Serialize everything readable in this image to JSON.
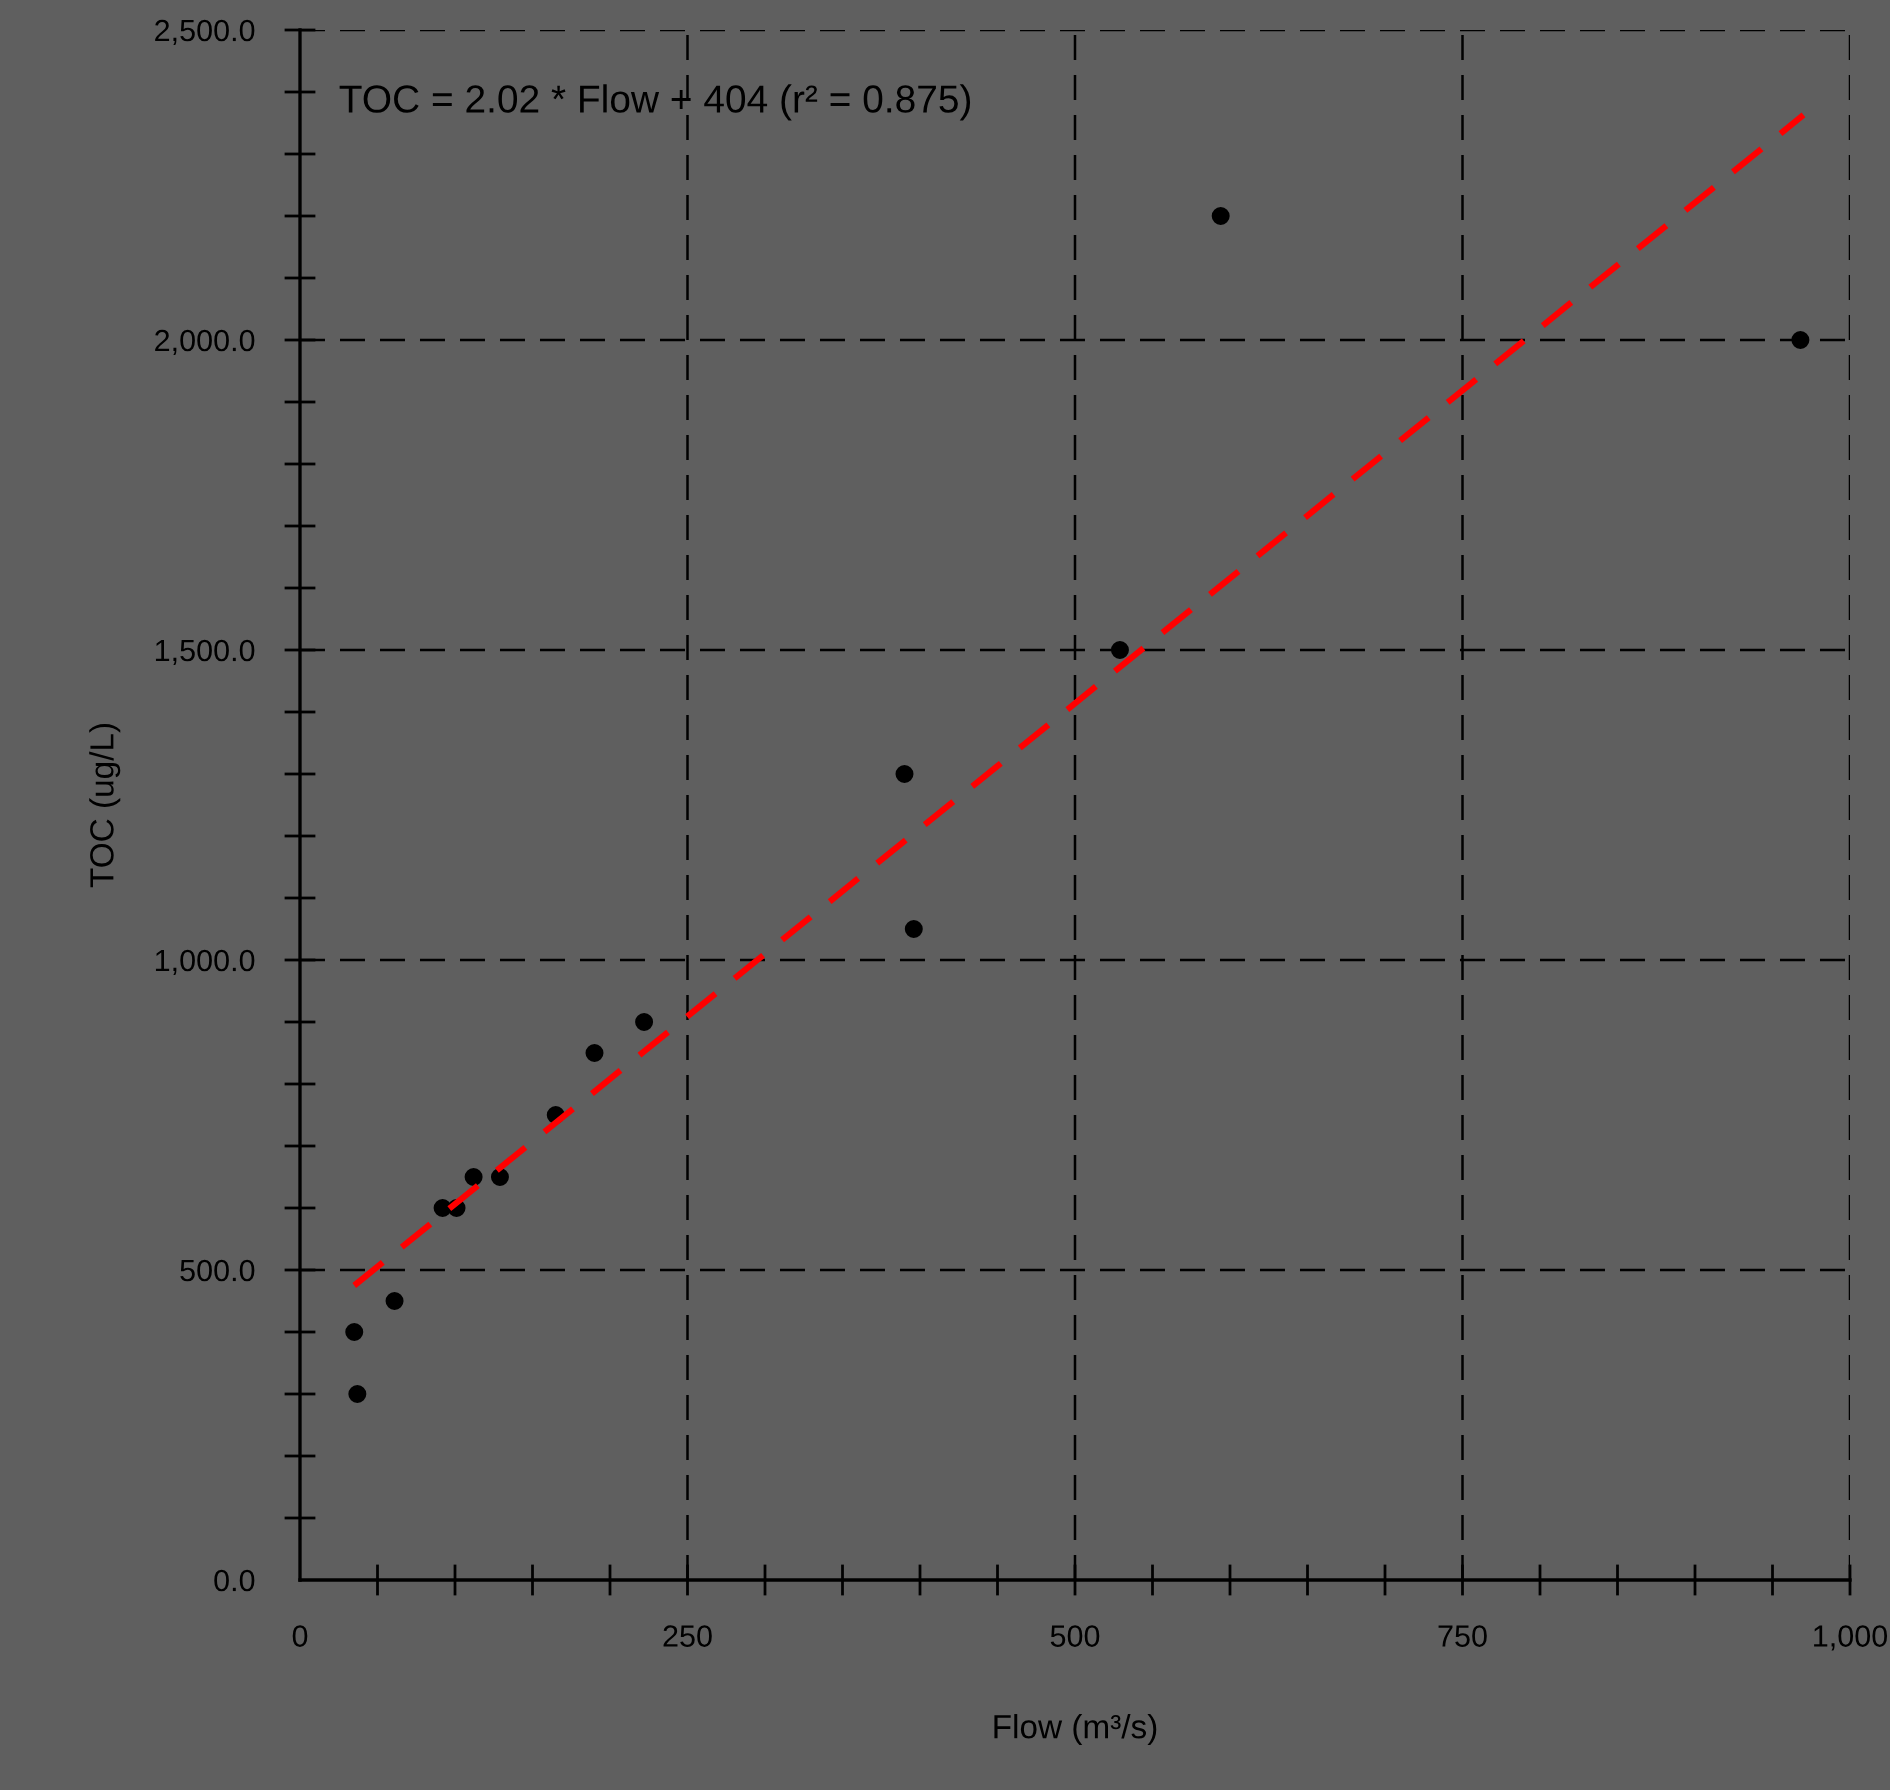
{
  "chart_data": {
    "type": "scatter",
    "xlabel": "Flow (m³/s)",
    "ylabel": "TOC (ug/L)",
    "annotations": [
      "TOC = 2.02 * Flow + 404 (r² = 0.875)"
    ],
    "xlim": [
      0,
      1000
    ],
    "ylim": [
      0,
      2500
    ],
    "xticks": [
      {
        "value": 0,
        "label": "0"
      },
      {
        "value": 50,
        "label": null
      },
      {
        "value": 100,
        "label": null
      },
      {
        "value": 150,
        "label": null
      },
      {
        "value": 200,
        "label": null
      },
      {
        "value": 250,
        "label": "250"
      },
      {
        "value": 300,
        "label": null
      },
      {
        "value": 350,
        "label": null
      },
      {
        "value": 400,
        "label": null
      },
      {
        "value": 450,
        "label": null
      },
      {
        "value": 500,
        "label": "500"
      },
      {
        "value": 550,
        "label": null
      },
      {
        "value": 600,
        "label": null
      },
      {
        "value": 650,
        "label": null
      },
      {
        "value": 700,
        "label": null
      },
      {
        "value": 750,
        "label": "750"
      },
      {
        "value": 800,
        "label": null
      },
      {
        "value": 850,
        "label": null
      },
      {
        "value": 900,
        "label": null
      },
      {
        "value": 950,
        "label": null
      },
      {
        "value": 1000,
        "label": "1,000"
      }
    ],
    "yticks": [
      {
        "value": 0,
        "label": "0.0"
      },
      {
        "value": 100,
        "label": null
      },
      {
        "value": 200,
        "label": null
      },
      {
        "value": 300,
        "label": null
      },
      {
        "value": 400,
        "label": null
      },
      {
        "value": 500,
        "label": "500.0"
      },
      {
        "value": 600,
        "label": null
      },
      {
        "value": 700,
        "label": null
      },
      {
        "value": 800,
        "label": null
      },
      {
        "value": 900,
        "label": null
      },
      {
        "value": 1000,
        "label": "1,000.0"
      },
      {
        "value": 1100,
        "label": null
      },
      {
        "value": 1200,
        "label": null
      },
      {
        "value": 1300,
        "label": null
      },
      {
        "value": 1400,
        "label": null
      },
      {
        "value": 1500,
        "label": "1,500.0"
      },
      {
        "value": 1600,
        "label": null
      },
      {
        "value": 1700,
        "label": null
      },
      {
        "value": 1800,
        "label": null
      },
      {
        "value": 1900,
        "label": null
      },
      {
        "value": 2000,
        "label": "2,000.0"
      },
      {
        "value": 2100,
        "label": null
      },
      {
        "value": 2200,
        "label": null
      },
      {
        "value": 2300,
        "label": null
      },
      {
        "value": 2400,
        "label": null
      },
      {
        "value": 2500,
        "label": "2,500.0"
      }
    ],
    "grid": true,
    "series": [
      {
        "type": "scatter",
        "color": "#000000",
        "marker": "circle",
        "x": [
          35,
          37,
          61,
          92,
          101,
          112,
          129,
          165,
          190,
          222,
          390,
          396,
          529,
          594,
          968
        ],
        "values": [
          400,
          300,
          450,
          600,
          600,
          650,
          650,
          750,
          850,
          900,
          1300,
          1050,
          1500,
          2200,
          2000
        ]
      },
      {
        "type": "line",
        "color": "#ff0000",
        "line_style": "dashed",
        "marker": "none",
        "x": [
          35,
          970
        ],
        "values": [
          475,
          2363
        ]
      }
    ]
  }
}
